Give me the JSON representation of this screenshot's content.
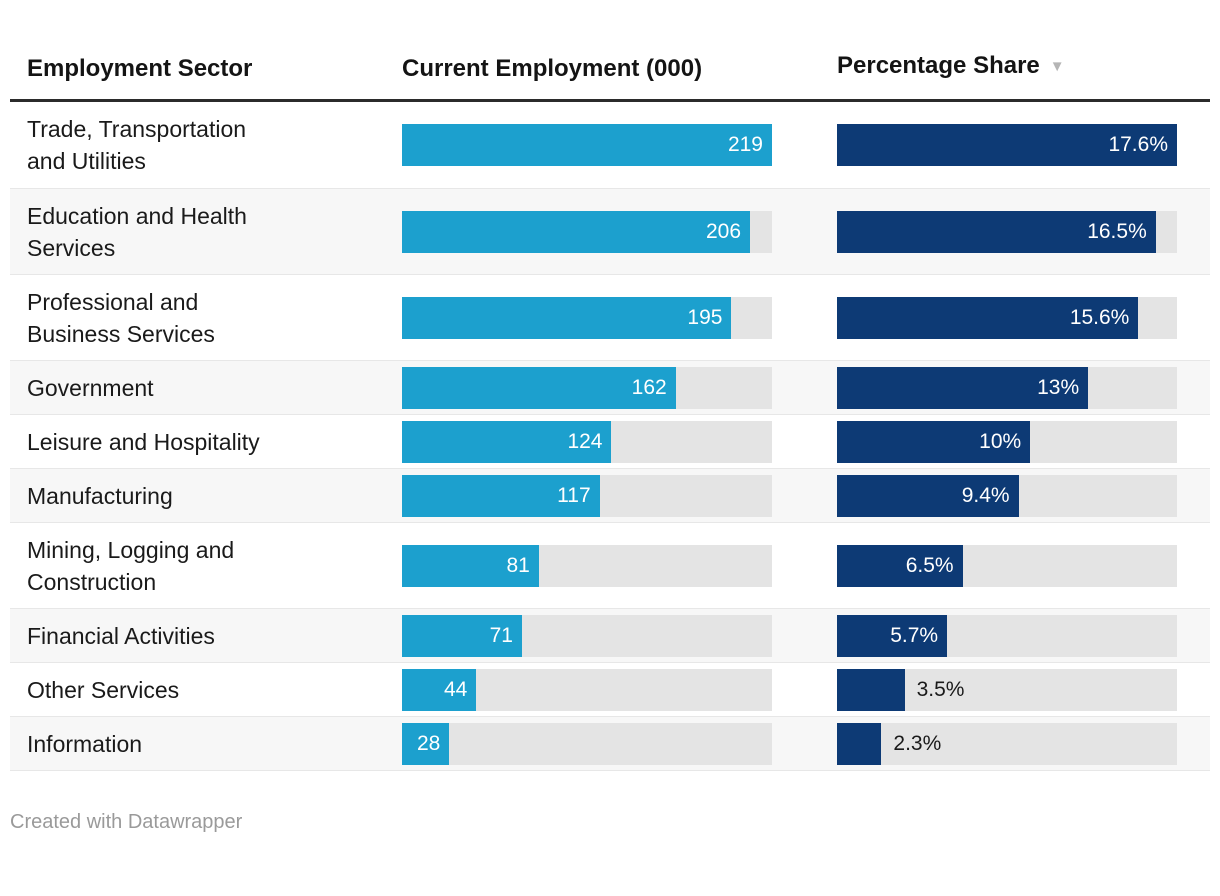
{
  "columns": [
    {
      "label": "Employment Sector"
    },
    {
      "label": "Current Employment (000)"
    },
    {
      "label": "Percentage Share",
      "sort_indicator": "▼"
    }
  ],
  "chart_data": {
    "type": "table",
    "columns": [
      "Employment Sector",
      "Current Employment (000)",
      "Percentage Share"
    ],
    "sorted_by": "Percentage Share descending",
    "employment_axis_max": 219,
    "share_axis_max": 17.6,
    "rows": [
      {
        "sector": "Trade, Transportation and Utilities",
        "sector_display": "Trade, Transportation\nand Utilities",
        "employment": 219,
        "employment_label": "219",
        "share": 17.6,
        "share_label": "17.6%"
      },
      {
        "sector": "Education and Health Services",
        "sector_display": "Education and Health\nServices",
        "employment": 206,
        "employment_label": "206",
        "share": 16.5,
        "share_label": "16.5%"
      },
      {
        "sector": "Professional and Business Services",
        "sector_display": "Professional and\nBusiness Services",
        "employment": 195,
        "employment_label": "195",
        "share": 15.6,
        "share_label": "15.6%"
      },
      {
        "sector": "Government",
        "sector_display": "Government",
        "employment": 162,
        "employment_label": "162",
        "share": 13,
        "share_label": "13%"
      },
      {
        "sector": "Leisure and Hospitality",
        "sector_display": "Leisure and Hospitality",
        "employment": 124,
        "employment_label": "124",
        "share": 10,
        "share_label": "10%"
      },
      {
        "sector": "Manufacturing",
        "sector_display": "Manufacturing",
        "employment": 117,
        "employment_label": "117",
        "share": 9.4,
        "share_label": "9.4%"
      },
      {
        "sector": "Mining, Logging and Construction",
        "sector_display": "Mining, Logging and\nConstruction",
        "employment": 81,
        "employment_label": "81",
        "share": 6.5,
        "share_label": "6.5%"
      },
      {
        "sector": "Financial Activities",
        "sector_display": "Financial Activities",
        "employment": 71,
        "employment_label": "71",
        "share": 5.7,
        "share_label": "5.7%"
      },
      {
        "sector": "Other Services",
        "sector_display": "Other Services",
        "employment": 44,
        "employment_label": "44",
        "share": 3.5,
        "share_label": "3.5%"
      },
      {
        "sector": "Information",
        "sector_display": "Information",
        "employment": 28,
        "employment_label": "28",
        "share": 2.3,
        "share_label": "2.3%"
      }
    ]
  },
  "colors": {
    "employment_bar": "#1CA0CE",
    "share_bar": "#0D3A75",
    "bar_track": "#e4e4e4",
    "row_stripe": "#f7f7f7"
  },
  "footer": {
    "credit": "Created with Datawrapper"
  }
}
